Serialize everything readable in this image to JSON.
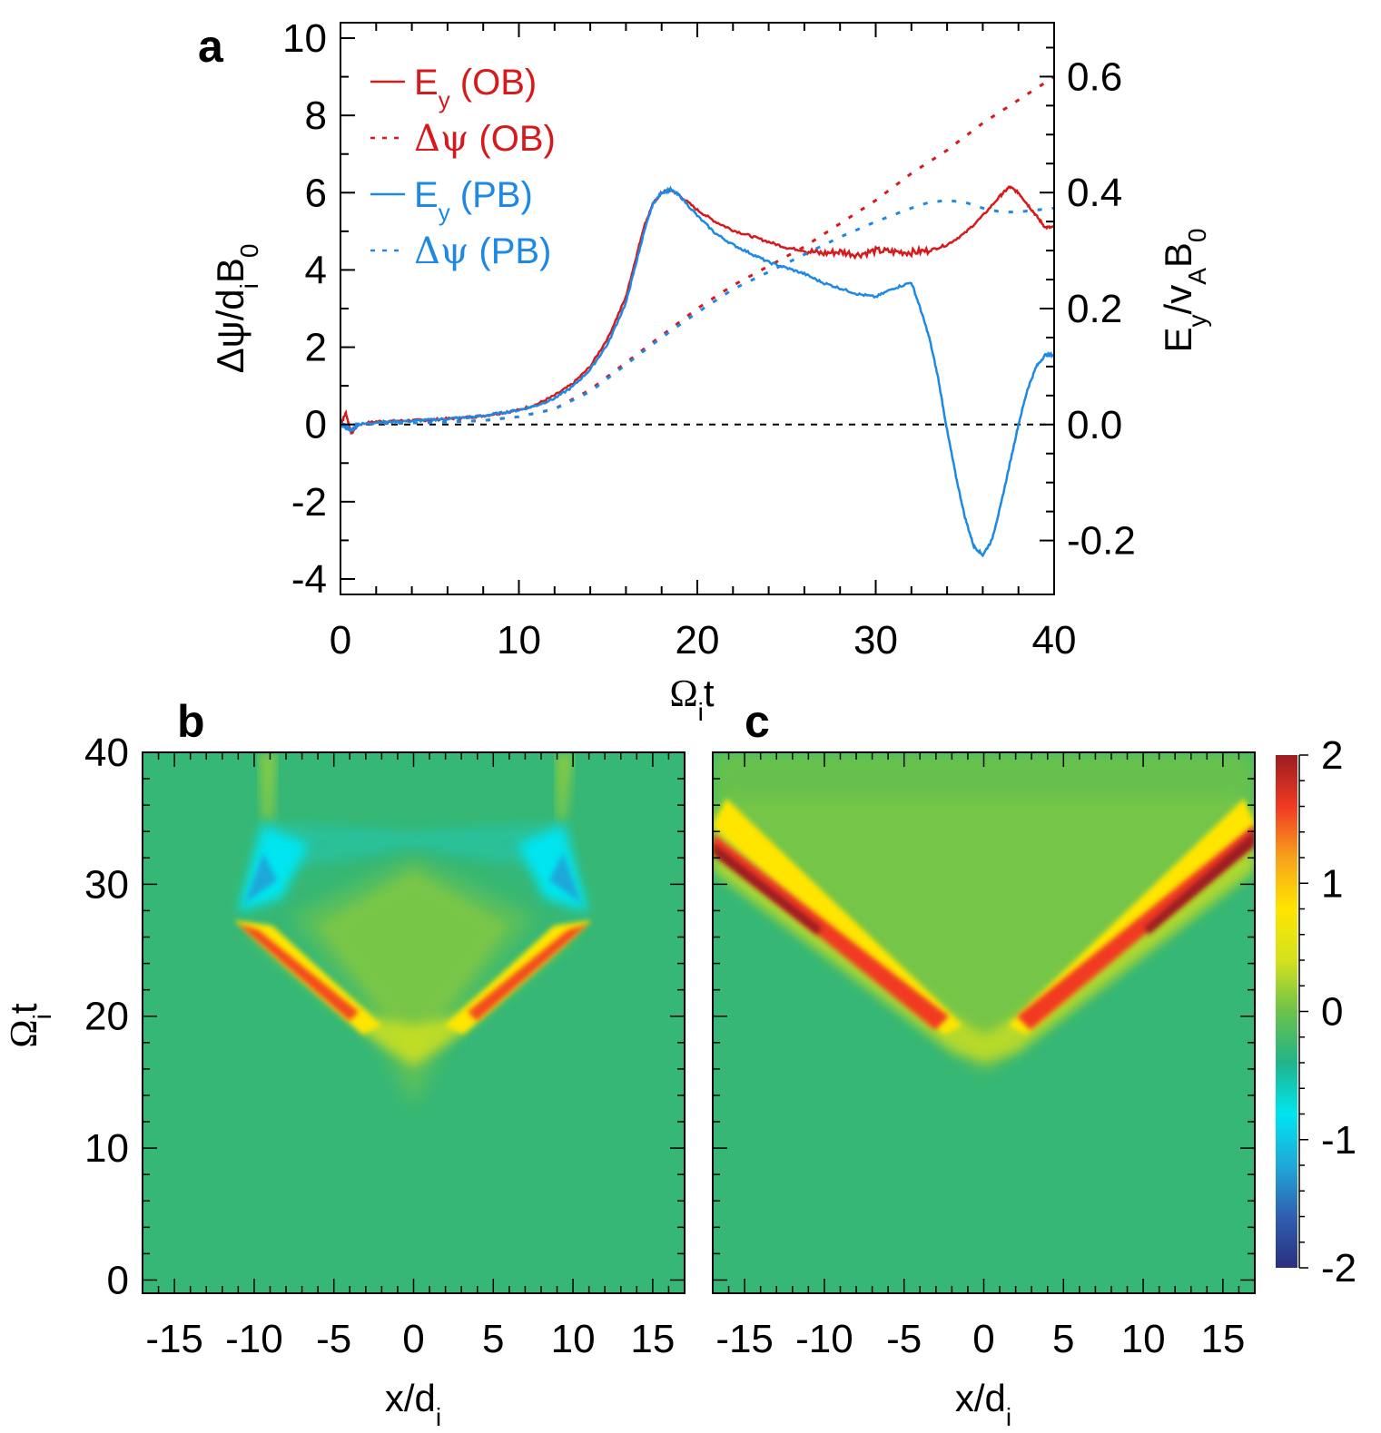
{
  "chart_data": [
    {
      "panel": "a",
      "type": "line",
      "xlabel": "Ωit",
      "xlabel_main": "Ω",
      "xlabel_sub": "i",
      "xlabel_tail": "t",
      "ylabel_left": "Δψ/diB0",
      "ylabel_left_parts": {
        "a": "Δψ/d",
        "sub1": "i",
        "b": "B",
        "sub2": "0"
      },
      "ylabel_right": "Ey/vAB0",
      "ylabel_right_parts": {
        "a": "E",
        "sub1": "y",
        "b": "/v",
        "sub2": "A",
        "c": "B",
        "sub3": "0"
      },
      "xlim": [
        0,
        40
      ],
      "ylim_left": [
        -4.4,
        10.4
      ],
      "ylim_right": [
        -0.293,
        0.693
      ],
      "xticks": [
        0,
        10,
        20,
        30,
        40
      ],
      "yticks_left": [
        -4,
        -2,
        0,
        2,
        4,
        6,
        8,
        10
      ],
      "yticks_right": [
        -0.2,
        0.0,
        0.2,
        0.4,
        0.6
      ],
      "yticks_right_labels": [
        "-0.2",
        "0.0",
        "0.2",
        "0.4",
        "0.6"
      ],
      "zero_line": true,
      "legend_position": "top-left",
      "series": [
        {
          "name": "Ey (OB)",
          "label_main": "E",
          "label_sub": "y",
          "label_tail": " (OB)",
          "color": "#d7191c",
          "style": "solid",
          "axis": "right",
          "x": [
            0,
            0.3,
            0.6,
            1,
            2,
            3,
            4,
            5,
            6,
            7,
            8,
            9,
            10,
            11,
            12,
            13,
            14,
            15,
            16,
            16.5,
            17,
            17.5,
            18,
            18.5,
            19,
            20,
            21,
            22,
            23,
            24,
            25,
            26,
            27,
            28,
            29,
            30,
            31,
            32,
            33,
            34,
            35,
            36,
            37,
            37.5,
            38,
            38.5,
            39,
            39.5,
            40
          ],
          "y": [
            0.0,
            0.02,
            -0.015,
            0.0,
            0.005,
            0.006,
            0.007,
            0.008,
            0.01,
            0.012,
            0.015,
            0.02,
            0.025,
            0.035,
            0.05,
            0.07,
            0.1,
            0.15,
            0.22,
            0.28,
            0.34,
            0.38,
            0.4,
            0.405,
            0.395,
            0.37,
            0.35,
            0.335,
            0.325,
            0.315,
            0.305,
            0.3,
            0.295,
            0.298,
            0.293,
            0.3,
            0.298,
            0.297,
            0.3,
            0.31,
            0.33,
            0.36,
            0.395,
            0.41,
            0.4,
            0.38,
            0.36,
            0.34,
            0.34
          ]
        },
        {
          "name": "Δψ (OB)",
          "label_main": "Δψ",
          "label_sub": "",
          "label_tail": " (OB)",
          "color": "#d7191c",
          "style": "dotted",
          "axis": "left",
          "x": [
            0,
            5,
            8,
            10,
            12,
            14,
            16,
            18,
            20,
            22,
            24,
            26,
            28,
            30,
            32,
            34,
            36,
            38,
            40
          ],
          "y": [
            0,
            0.05,
            0.1,
            0.2,
            0.4,
            0.9,
            1.6,
            2.3,
            3.0,
            3.6,
            4.1,
            4.6,
            5.2,
            5.8,
            6.5,
            7.1,
            7.8,
            8.4,
            9.0
          ]
        },
        {
          "name": "Ey (PB)",
          "label_main": "E",
          "label_sub": "y",
          "label_tail": " (PB)",
          "color": "#1e88e5",
          "style": "solid",
          "axis": "right",
          "x": [
            0,
            0.3,
            0.6,
            1,
            2,
            3,
            4,
            5,
            6,
            7,
            8,
            9,
            10,
            11,
            12,
            13,
            14,
            15,
            16,
            16.5,
            17,
            17.5,
            18,
            18.5,
            19,
            20,
            21,
            22,
            23,
            24,
            25,
            26,
            27,
            28,
            29,
            30,
            31,
            32,
            32.5,
            33,
            33.5,
            34,
            34.5,
            35,
            35.5,
            36,
            36.5,
            37,
            37.5,
            38,
            38.5,
            39,
            39.5,
            40
          ],
          "y": [
            0.0,
            -0.005,
            -0.01,
            0.0,
            0.004,
            0.005,
            0.006,
            0.008,
            0.01,
            0.012,
            0.015,
            0.02,
            0.025,
            0.033,
            0.045,
            0.065,
            0.095,
            0.14,
            0.21,
            0.27,
            0.33,
            0.38,
            0.4,
            0.405,
            0.395,
            0.36,
            0.33,
            0.31,
            0.295,
            0.28,
            0.27,
            0.26,
            0.245,
            0.235,
            0.225,
            0.22,
            0.235,
            0.245,
            0.2,
            0.15,
            0.08,
            -0.01,
            -0.09,
            -0.16,
            -0.21,
            -0.225,
            -0.2,
            -0.14,
            -0.07,
            0.0,
            0.06,
            0.1,
            0.12,
            0.12
          ]
        },
        {
          "name": "Δψ (PB)",
          "label_main": "Δψ",
          "label_sub": "",
          "label_tail": " (PB)",
          "color": "#1e88e5",
          "style": "dotted",
          "axis": "left",
          "x": [
            0,
            5,
            8,
            10,
            12,
            14,
            16,
            18,
            20,
            22,
            24,
            26,
            28,
            30,
            32,
            33,
            34,
            35,
            36,
            37,
            38,
            39,
            40
          ],
          "y": [
            0,
            0.05,
            0.1,
            0.2,
            0.4,
            0.85,
            1.55,
            2.25,
            2.9,
            3.5,
            3.95,
            4.4,
            4.85,
            5.25,
            5.6,
            5.75,
            5.8,
            5.75,
            5.6,
            5.5,
            5.5,
            5.55,
            5.6
          ]
        }
      ]
    },
    {
      "panel": "b",
      "type": "heatmap",
      "xlabel": "x/di",
      "xlabel_main": "x/d",
      "xlabel_sub": "i",
      "ylabel": "Ωit",
      "ylabel_main": "Ω",
      "ylabel_sub": "i",
      "ylabel_tail": "t",
      "xlim": [
        -17,
        17
      ],
      "ylim": [
        -1,
        40
      ],
      "xticks": [
        -15,
        -10,
        -5,
        0,
        5,
        10,
        15
      ],
      "yticks": [
        0,
        10,
        20,
        30,
        40
      ],
      "features": [
        {
          "kind": "positive-band",
          "description": "V-shaped fronts from (±3,19) to (±11,27)",
          "peak_value": 1.3
        },
        {
          "kind": "negative-lobes",
          "description": "cyan lobes near x=±9 to ±11, t=28–35",
          "peak_value": -0.6
        },
        {
          "kind": "background",
          "value": 0.0
        }
      ]
    },
    {
      "panel": "c",
      "type": "heatmap",
      "xlabel": "x/di",
      "xlabel_main": "x/d",
      "xlabel_sub": "i",
      "xlim": [
        -17,
        17
      ],
      "ylim": [
        -1,
        40
      ],
      "xticks": [
        -15,
        -10,
        -5,
        0,
        5,
        10,
        15
      ],
      "yticks": [
        0,
        10,
        20,
        30,
        40
      ],
      "features": [
        {
          "kind": "positive-band",
          "description": "V-shaped fronts from (±3,19) to (±17,32)",
          "peak_value": 2.0
        },
        {
          "kind": "background",
          "value": 0.0
        }
      ],
      "colorbar": {
        "range": [
          -2,
          2
        ],
        "ticks": [
          -2,
          -1,
          0,
          1,
          2
        ],
        "colormap": [
          "#2b2f80",
          "#2f5fb0",
          "#1fa8d8",
          "#00e5f0",
          "#21b48a",
          "#6cc24a",
          "#d4e21e",
          "#ffe500",
          "#f7a21b",
          "#f03a23",
          "#9b1d20"
        ]
      }
    }
  ],
  "panel_labels": {
    "a": "a",
    "b": "b",
    "c": "c"
  },
  "zero_line_color": "#000000"
}
